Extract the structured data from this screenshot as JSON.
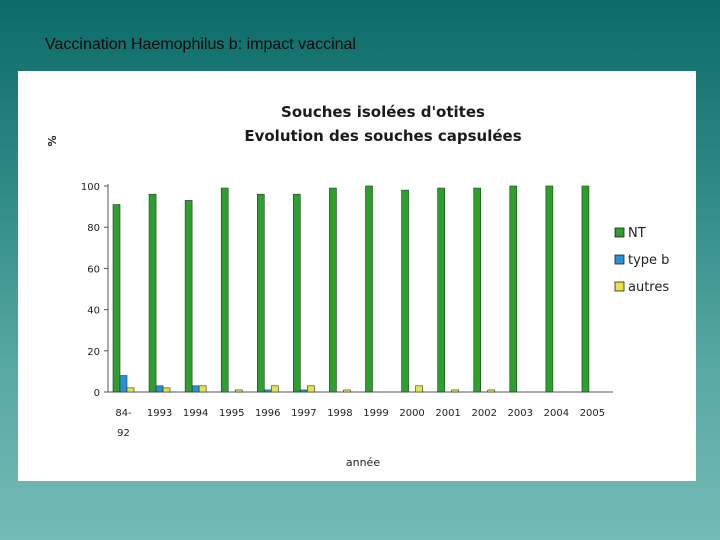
{
  "slide": {
    "title": "Vaccination Haemophilus b: impact vaccinal"
  },
  "colors": {
    "NT": "#2e9e2e",
    "type b": "#2a8fd6",
    "autres": "#e8e24a",
    "axis": "#555555"
  },
  "chart_data": {
    "type": "bar",
    "title": "Souches isolées d'otites",
    "subtitle": "Evolution des souches capsulées",
    "ylabel": "%",
    "xlabel": "année",
    "ylim": [
      0,
      100
    ],
    "yticks": [
      0,
      20,
      40,
      60,
      80,
      100
    ],
    "categories": [
      "84-\n92",
      "1993",
      "1994",
      "1995",
      "1996",
      "1997",
      "1998",
      "1999",
      "2000",
      "2001",
      "2002",
      "2003",
      "2004",
      "2005"
    ],
    "series": [
      {
        "name": "NT",
        "values": [
          91,
          96,
          93,
          99,
          96,
          96,
          99,
          100,
          98,
          99,
          99,
          100,
          100,
          100
        ]
      },
      {
        "name": "type b",
        "values": [
          8,
          3,
          3,
          0,
          1,
          1,
          0,
          0,
          0,
          0,
          0,
          0,
          0,
          0
        ]
      },
      {
        "name": "autres",
        "values": [
          2,
          2,
          3,
          1,
          3,
          3,
          1,
          0,
          3,
          1,
          1,
          0,
          0,
          0
        ]
      }
    ],
    "legend_position": "right",
    "grid": false
  }
}
